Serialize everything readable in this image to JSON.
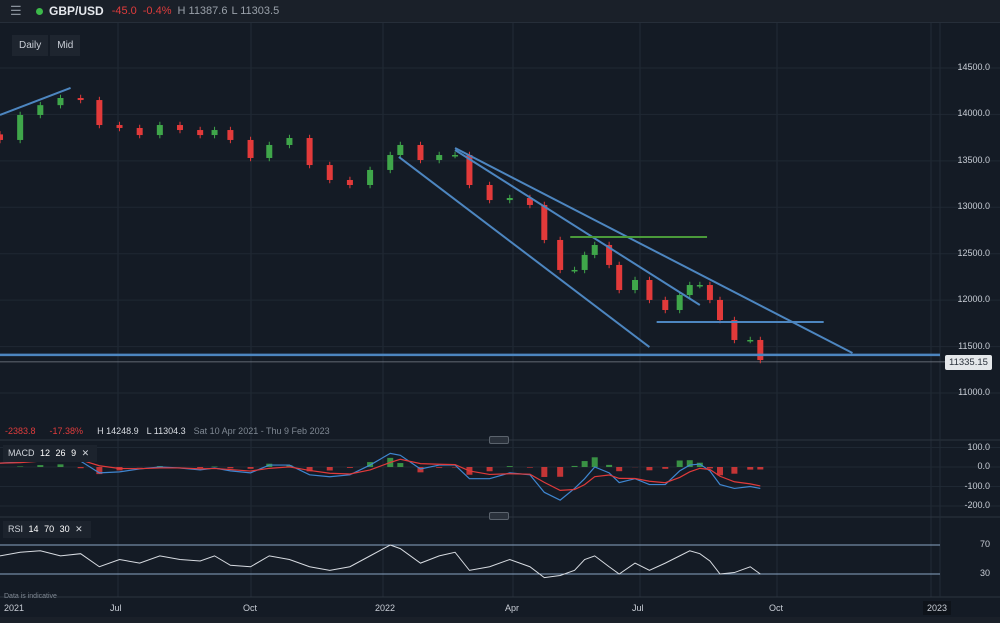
{
  "header": {
    "menu_icon": "hamburger-icon",
    "status_color": "#3cb94a",
    "symbol": "GBP/USD",
    "change": "-45.0",
    "change_pct": "-0.4%",
    "high": "H 11387.6",
    "low": "L 11303.5"
  },
  "toolbar": {
    "interval": "Daily",
    "price_type": "Mid"
  },
  "range_info": {
    "change": "-2383.8",
    "change_pct": "-17.38%",
    "high": "H 14248.9",
    "low": "L 11304.3",
    "period": "Sat 10 Apr 2021 - Thu 9 Feb 2023"
  },
  "colors": {
    "up": "#3fa64a",
    "down": "#e23a3a",
    "trendline": "#4d86c0",
    "resistance": "#4a9a3a",
    "macd": "#3f86d0",
    "signal": "#e03a3a",
    "rsi": "#d8dce2"
  },
  "footnote": "Data is indicative",
  "chart_data": {
    "type": "candlestick",
    "xlabels": [
      "2021",
      "Jul",
      "Oct",
      "2022",
      "Apr",
      "Jul",
      "Oct",
      "2023"
    ],
    "ylim": [
      10700,
      14900
    ],
    "yticks": [
      "14500.0",
      "14000.0",
      "13500.0",
      "13000.0",
      "12500.0",
      "12000.0",
      "11500.0",
      "11000.0"
    ],
    "last_price": "11335.15",
    "grid": true,
    "dates": [
      "2021-04-10",
      "2021-04-24",
      "2021-05-08",
      "2021-05-22",
      "2021-06-05",
      "2021-06-18",
      "2021-07-02",
      "2021-07-16",
      "2021-07-30",
      "2021-08-13",
      "2021-08-27",
      "2021-09-06",
      "2021-09-17",
      "2021-10-01",
      "2021-10-14",
      "2021-10-28",
      "2021-11-11",
      "2021-11-25",
      "2021-12-09",
      "2021-12-23",
      "2022-01-06",
      "2022-01-13",
      "2022-01-27",
      "2022-02-09",
      "2022-02-20",
      "2022-03-02",
      "2022-03-16",
      "2022-03-30",
      "2022-04-13",
      "2022-04-23",
      "2022-05-04",
      "2022-05-14",
      "2022-05-21",
      "2022-05-28",
      "2022-06-07",
      "2022-06-14",
      "2022-06-25",
      "2022-07-05",
      "2022-07-16",
      "2022-07-26",
      "2022-08-02",
      "2022-08-09",
      "2022-08-16",
      "2022-08-23",
      "2022-09-02",
      "2022-09-13",
      "2022-09-20"
    ],
    "close": [
      13725,
      13994,
      14100,
      14177,
      14155,
      13886,
      13854,
      13778,
      13886,
      13832,
      13778,
      13832,
      13725,
      13531,
      13671,
      13746,
      13455,
      13294,
      13240,
      13402,
      13563,
      13671,
      13509,
      13563,
      13563,
      13240,
      13078,
      13100,
      13025,
      12648,
      12325,
      12325,
      12487,
      12594,
      12379,
      12109,
      12217,
      12002,
      11894,
      12055,
      12163,
      12163,
      12002,
      11786,
      11571,
      11571,
      11355
    ],
    "drawings": [
      {
        "type": "trendline",
        "color": "trendline",
        "from": [
          "2021-04-10",
          13994
        ],
        "to": [
          "2021-05-29",
          14285
        ]
      },
      {
        "type": "trendline",
        "color": "trendline",
        "from": [
          "2022-01-12",
          13542
        ],
        "to": [
          "2022-07-05",
          11495
        ]
      },
      {
        "type": "trendline",
        "color": "trendline",
        "from": [
          "2022-02-20",
          13638
        ],
        "to": [
          "2022-11-23",
          11431
        ]
      },
      {
        "type": "trendline",
        "color": "trendline",
        "from": [
          "2022-02-20",
          13617
        ],
        "to": [
          "2022-08-09",
          11948
        ]
      },
      {
        "type": "trendline",
        "color": "resistance",
        "from": [
          "2022-05-11",
          12680
        ],
        "to": [
          "2022-08-14",
          12680
        ]
      },
      {
        "type": "trendline",
        "color": "trendline",
        "from": [
          "2022-07-10",
          11765
        ],
        "to": [
          "2022-11-03",
          11765
        ]
      },
      {
        "type": "horizontal",
        "color": "trendline",
        "price": 11410
      }
    ],
    "macd": {
      "label": "MACD",
      "params": [
        "12",
        "26",
        "9"
      ],
      "yticks": [
        "100.0",
        "0.0",
        "-100.0",
        "-200.0"
      ],
      "values": [
        20,
        25,
        40,
        55,
        30,
        -30,
        -25,
        -10,
        0,
        -5,
        -15,
        -5,
        -20,
        -30,
        10,
        10,
        -40,
        -50,
        -40,
        10,
        70,
        60,
        -10,
        10,
        10,
        -60,
        -60,
        -30,
        -40,
        -130,
        -170,
        -110,
        -60,
        0,
        -30,
        -80,
        -60,
        -90,
        -90,
        -20,
        10,
        15,
        -20,
        -90,
        -110,
        -100,
        -110
      ]
    },
    "rsi": {
      "label": "RSI",
      "params": [
        "14",
        "70",
        "30"
      ],
      "levels": [
        "70",
        "30"
      ],
      "values": [
        55,
        60,
        62,
        55,
        58,
        40,
        50,
        45,
        55,
        50,
        48,
        55,
        42,
        40,
        55,
        50,
        40,
        35,
        40,
        55,
        70,
        65,
        45,
        55,
        60,
        35,
        40,
        50,
        40,
        25,
        28,
        35,
        50,
        55,
        40,
        30,
        45,
        35,
        45,
        55,
        62,
        58,
        48,
        30,
        32,
        40,
        30
      ]
    }
  }
}
